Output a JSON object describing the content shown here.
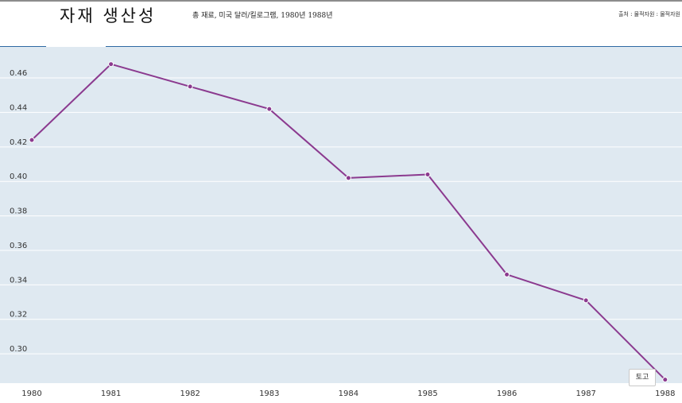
{
  "header": {
    "title": "자재 생산성",
    "subtitle": "총 재료, 미국 달러/킬로그램, 1980년 1988년",
    "source": "출처 : 물적자원 : 물적자원"
  },
  "tooltip": {
    "label": "토고"
  },
  "chart_data": {
    "type": "line",
    "title": "자재 생산성",
    "subtitle": "총 재료, 미국 달러/킬로그램, 1980년 1988년",
    "xlabel": "",
    "ylabel": "",
    "categories": [
      "1980",
      "1981",
      "1982",
      "1983",
      "1984",
      "1985",
      "1986",
      "1987",
      "1988"
    ],
    "series": [
      {
        "name": "토고",
        "values": [
          0.424,
          0.468,
          0.455,
          0.442,
          0.402,
          0.404,
          0.346,
          0.331,
          0.285
        ],
        "color": "#8b3a8f"
      }
    ],
    "yticks": [
      "0.30",
      "0.32",
      "0.34",
      "0.36",
      "0.38",
      "0.40",
      "0.42",
      "0.44",
      "0.46"
    ],
    "ylim": [
      0.283,
      0.478
    ],
    "grid": true,
    "colors": {
      "plot_background": "#dfe9f1",
      "grid": "#ffffff",
      "accent_rule": "#2f6aa3"
    }
  }
}
